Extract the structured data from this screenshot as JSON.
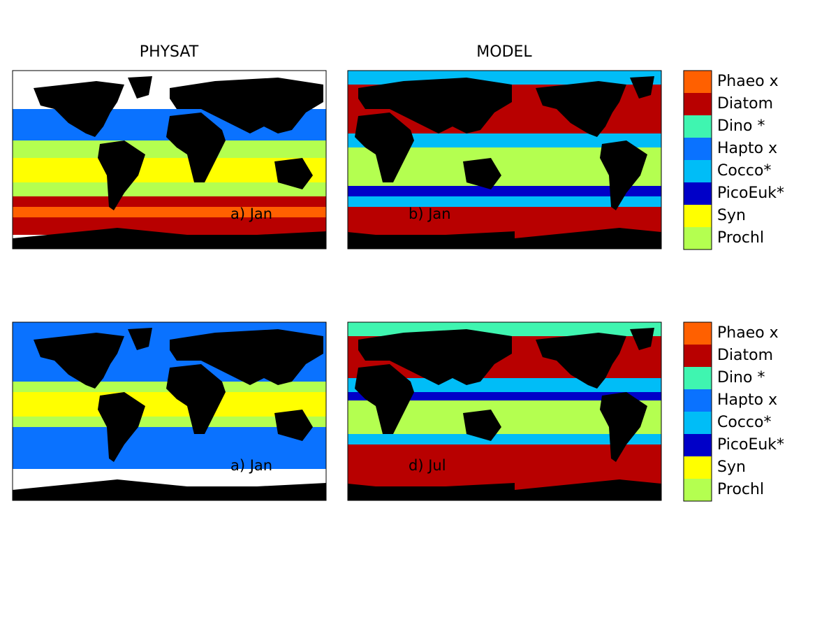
{
  "column_titles": [
    "PHYSAT",
    "MODEL"
  ],
  "panels": [
    {
      "label": "a) Jan"
    },
    {
      "label": "b) Jan"
    },
    {
      "label": "a) Jan"
    },
    {
      "label": "d) Jul"
    }
  ],
  "legend": {
    "entries": [
      {
        "name": "Phaeo x",
        "color": "#ff6000"
      },
      {
        "name": "Diatom",
        "color": "#b80000"
      },
      {
        "name": "Dino *",
        "color": "#3ff5b0"
      },
      {
        "name": "Hapto x",
        "color": "#0a72ff"
      },
      {
        "name": "Cocco*",
        "color": "#00bdf7"
      },
      {
        "name": "PicoEuk*",
        "color": "#0000c8"
      },
      {
        "name": "Syn",
        "color": "#ffff00"
      },
      {
        "name": "Prochl",
        "color": "#b4ff50"
      }
    ]
  }
}
